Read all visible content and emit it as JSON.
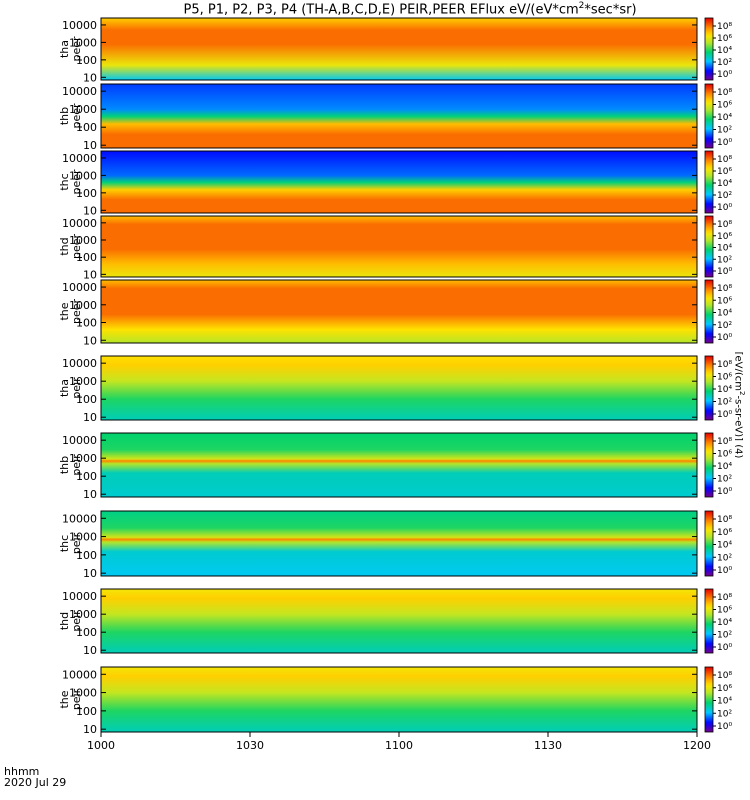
{
  "title": {
    "prefix": "P5, P1, P2, P3, P4 (TH-A,B,C,D,E) PEIR,PEER EFlux eV/(eV*cm",
    "sup": "2",
    "suffix": "*sec*sr)"
  },
  "time_axis": {
    "units_label": "hhmm",
    "date_label": "2020 Jul 29",
    "ticks": [
      "1000",
      "1030",
      "1100",
      "1130",
      "1200"
    ]
  },
  "colorbar": {
    "label_prefix": "[eV/(cm",
    "label_sup": "2",
    "label_suffix": "-s-sr-eV)] (4)",
    "ticks": [
      "10⁸",
      "10⁶",
      "10⁴",
      "10²",
      "10⁰"
    ]
  },
  "chart_data": {
    "type": "heatmap",
    "title": "P5, P1, P2, P3, P4 (TH-A,B,C,D,E) PEIR,PEER EFlux eV/(eV*cm2*sec*sr)",
    "x_label": "hhmm",
    "x_range": [
      "10:00",
      "12:00"
    ],
    "date": "2020 Jul 29",
    "y_scale": "log",
    "y_range_eV": [
      7,
      25000
    ],
    "y_ticks": [
      10,
      100,
      1000,
      10000
    ],
    "colorbar_scale": "log",
    "colorbar_range": [
      1,
      100000000
    ],
    "colormap": "rainbow (purple-blue-cyan-green-yellow-orange-red)",
    "panels": [
      {
        "probe": "tha",
        "species": "peer",
        "label": "tha\npeer",
        "profile": [
          [
            7,
            2.5
          ],
          [
            50,
            5.5
          ],
          [
            800,
            7.0
          ],
          [
            5000,
            7.0
          ],
          [
            25000,
            6.0
          ]
        ]
      },
      {
        "probe": "thb",
        "species": "peer",
        "label": "thb\npeer",
        "profile": [
          [
            7,
            7.0
          ],
          [
            40,
            7.0
          ],
          [
            150,
            6.2
          ],
          [
            400,
            3.5
          ],
          [
            1000,
            2.0
          ],
          [
            25000,
            1.5
          ]
        ]
      },
      {
        "probe": "thc",
        "species": "peer",
        "label": "thc\npeer",
        "profile": [
          [
            7,
            7.0
          ],
          [
            40,
            7.0
          ],
          [
            150,
            6.0
          ],
          [
            400,
            3.5
          ],
          [
            1000,
            1.8
          ],
          [
            25000,
            1.2
          ]
        ]
      },
      {
        "probe": "thd",
        "species": "peer",
        "label": "thd\npeer",
        "profile": [
          [
            7,
            5.5
          ],
          [
            40,
            6.2
          ],
          [
            300,
            7.0
          ],
          [
            8000,
            7.0
          ],
          [
            25000,
            6.2
          ]
        ]
      },
      {
        "probe": "the",
        "species": "peer",
        "label": "the\npeer",
        "profile": [
          [
            7,
            4.8
          ],
          [
            40,
            5.8
          ],
          [
            300,
            7.0
          ],
          [
            8000,
            7.0
          ],
          [
            25000,
            6.2
          ]
        ]
      },
      {
        "probe": "tha",
        "species": "peir",
        "label": "tha\npeir",
        "profile": [
          [
            7,
            3.0
          ],
          [
            100,
            3.8
          ],
          [
            1000,
            5.0
          ],
          [
            8000,
            6.0
          ],
          [
            25000,
            5.8
          ]
        ]
      },
      {
        "probe": "thb",
        "species": "peir",
        "label": "thb\npeir",
        "profile": [
          [
            7,
            2.8
          ],
          [
            150,
            3.0
          ],
          [
            500,
            4.8
          ],
          [
            700,
            6.8
          ],
          [
            900,
            5.2
          ],
          [
            3000,
            3.8
          ],
          [
            25000,
            3.6
          ]
        ]
      },
      {
        "probe": "thc",
        "species": "peir",
        "label": "thc\npeir",
        "profile": [
          [
            7,
            2.5
          ],
          [
            150,
            2.8
          ],
          [
            500,
            4.8
          ],
          [
            700,
            6.8
          ],
          [
            900,
            5.2
          ],
          [
            3000,
            3.8
          ],
          [
            25000,
            3.4
          ]
        ]
      },
      {
        "probe": "thd",
        "species": "peir",
        "label": "thd\npeir",
        "profile": [
          [
            7,
            3.0
          ],
          [
            100,
            3.8
          ],
          [
            1000,
            5.0
          ],
          [
            8000,
            6.0
          ],
          [
            25000,
            5.6
          ]
        ]
      },
      {
        "probe": "the",
        "species": "peir",
        "label": "the\npeir",
        "profile": [
          [
            7,
            3.0
          ],
          [
            100,
            3.8
          ],
          [
            1000,
            5.0
          ],
          [
            8000,
            6.0
          ],
          [
            25000,
            5.6
          ]
        ]
      }
    ]
  }
}
